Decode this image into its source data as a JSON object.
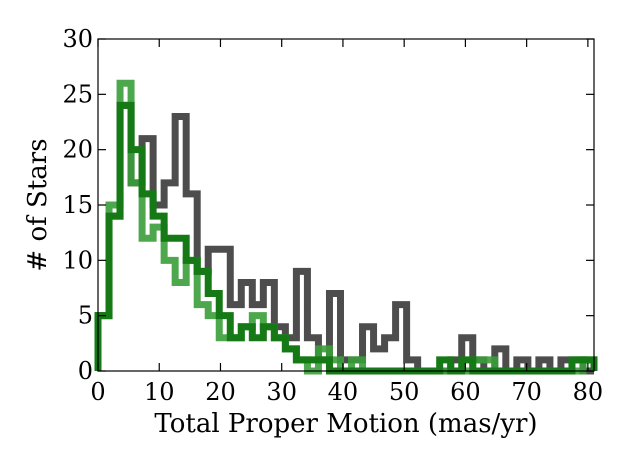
{
  "chart_data": {
    "type": "histogram",
    "title": "",
    "xlabel": "Total Proper Motion (mas/yr)",
    "ylabel": "# of Stars",
    "xlim": [
      0,
      81
    ],
    "ylim": [
      0,
      30
    ],
    "grid": false,
    "legend": "none",
    "x_ticks": [
      0,
      10,
      20,
      30,
      40,
      50,
      60,
      70,
      80
    ],
    "y_ticks": [
      0,
      5,
      10,
      15,
      20,
      25,
      30
    ],
    "bin_edges": [
      0,
      1.8,
      3.6,
      5.4,
      7.2,
      9.0,
      10.8,
      12.6,
      14.4,
      16.2,
      18.0,
      19.8,
      21.6,
      23.4,
      25.2,
      27.0,
      28.8,
      30.6,
      32.4,
      34.2,
      36.0,
      37.8,
      39.6,
      41.4,
      43.2,
      45.0,
      46.8,
      48.6,
      50.4,
      52.2,
      54.0,
      55.8,
      57.6,
      59.4,
      61.2,
      63.0,
      64.8,
      66.6,
      68.4,
      70.2,
      72.0,
      73.8,
      75.6,
      77.4,
      79.2,
      81.0
    ],
    "series": [
      {
        "color": "#4d4d4d",
        "opacity": 1,
        "values": [
          5,
          14,
          24,
          17,
          21,
          15,
          17,
          23,
          16,
          9,
          11,
          11,
          6,
          8,
          6,
          8,
          4,
          3,
          9,
          3,
          1,
          7,
          1,
          1,
          4,
          2,
          3,
          6,
          1,
          0,
          0,
          0,
          1,
          3,
          1,
          0,
          2,
          0,
          1,
          0,
          1,
          0,
          1,
          1,
          0
        ]
      },
      {
        "color": "#3a9e3a",
        "opacity": 0.9,
        "values": [
          5,
          15,
          26,
          17,
          12,
          13,
          10,
          8,
          10,
          6,
          5,
          3,
          3,
          4,
          5,
          4,
          3,
          2,
          1,
          0,
          2,
          1,
          0,
          1,
          0,
          0,
          0,
          0,
          0,
          0,
          0,
          0,
          0,
          0,
          1,
          1,
          0,
          0,
          0,
          0,
          0,
          0,
          0,
          0,
          1
        ]
      },
      {
        "color": "#157a15",
        "opacity": 1,
        "values": [
          5,
          14,
          24,
          20,
          16,
          14,
          12,
          12,
          10,
          9,
          7,
          5,
          3,
          4,
          3,
          4,
          3,
          2,
          1,
          1,
          1,
          0,
          0,
          0,
          0,
          0,
          0,
          0,
          0,
          0,
          0,
          1,
          0,
          1,
          0,
          0,
          0,
          0,
          0,
          0,
          0,
          0,
          0,
          1,
          1
        ]
      }
    ]
  }
}
